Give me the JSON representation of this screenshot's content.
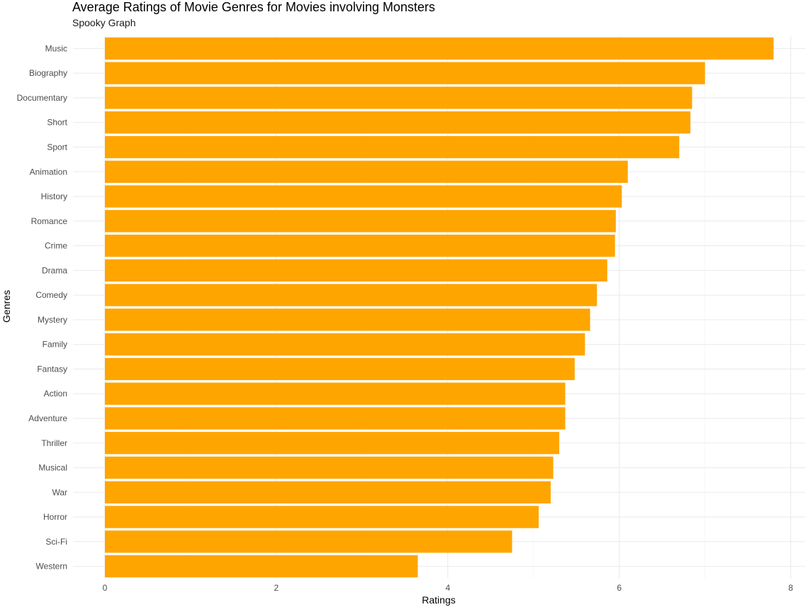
{
  "chart_data": {
    "type": "bar",
    "orientation": "horizontal",
    "title": "Average Ratings of Movie Genres for Movies involving Monsters",
    "subtitle": "Spooky Graph",
    "xlabel": "Ratings",
    "ylabel": "Genres",
    "xlim": [
      0,
      8.1
    ],
    "x_ticks": [
      "0",
      "2",
      "4",
      "6",
      "8"
    ],
    "grid": true,
    "bar_color": "#FFA500",
    "categories": [
      "Music",
      "Biography",
      "Documentary",
      "Short",
      "Sport",
      "Animation",
      "History",
      "Romance",
      "Crime",
      "Drama",
      "Comedy",
      "Mystery",
      "Family",
      "Fantasy",
      "Action",
      "Adventure",
      "Thriller",
      "Musical",
      "War",
      "Horror",
      "Sci-Fi",
      "Western"
    ],
    "values": [
      7.8,
      7.0,
      6.85,
      6.83,
      6.7,
      6.1,
      6.03,
      5.96,
      5.95,
      5.86,
      5.74,
      5.66,
      5.6,
      5.48,
      5.37,
      5.37,
      5.3,
      5.23,
      5.2,
      5.06,
      4.75,
      3.65
    ]
  }
}
